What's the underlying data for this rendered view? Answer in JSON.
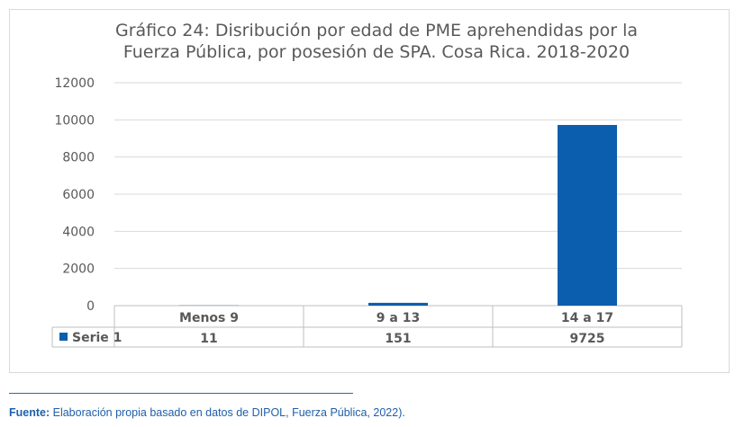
{
  "chart_data": {
    "type": "bar",
    "title_line1": "Gráfico 24: Disribución por edad de PME aprehendidas por la",
    "title_line2": "Fuerza Pública, por posesión de SPA.  Cosa Rica. 2018-2020",
    "categories": [
      "Menos 9",
      "9 a 13",
      "14 a 17"
    ],
    "series": [
      {
        "name": "Serie 1",
        "values": [
          11,
          151,
          9725
        ],
        "color": "#0b5ead"
      }
    ],
    "ylim": [
      0,
      12000
    ],
    "yticks": [
      "0",
      "2000",
      "4000",
      "6000",
      "8000",
      "10000",
      "12000"
    ],
    "grid": true,
    "legend": "data-table"
  },
  "source": {
    "label": "Fuente:",
    "text": " Elaboración propia basado en datos de DIPOL, Fuerza Pública, 2022)."
  }
}
